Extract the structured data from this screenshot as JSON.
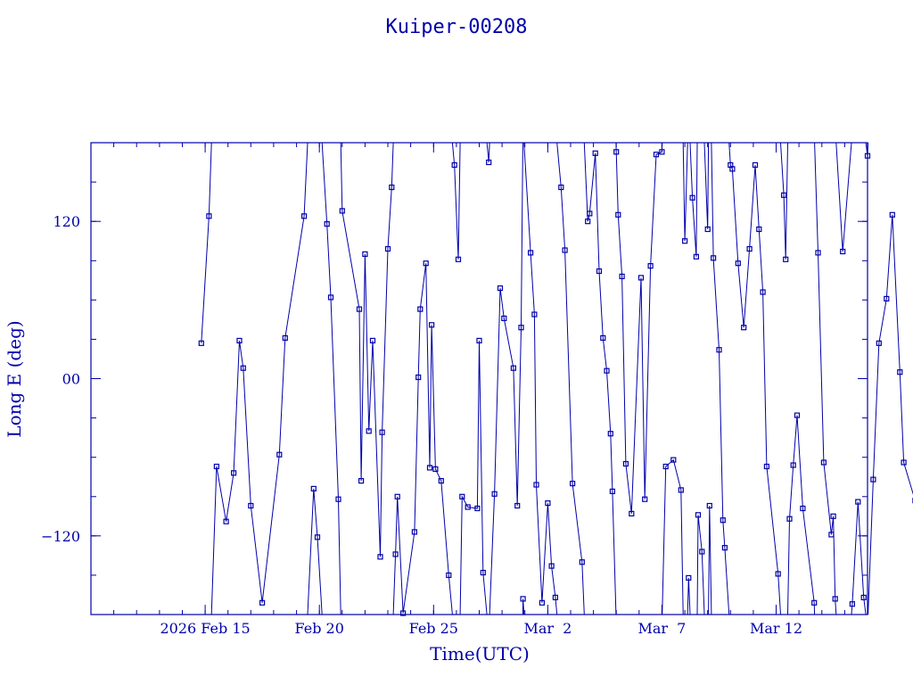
{
  "chart_data": {
    "type": "line",
    "title": "Kuiper-00208",
    "xlabel": "Time(UTC)",
    "ylabel": "Long E (deg)",
    "x_ticks": [
      {
        "day": 0,
        "label": "2026 Feb 15"
      },
      {
        "day": 5,
        "label": "Feb 20"
      },
      {
        "day": 10,
        "label": "Feb 25"
      },
      {
        "day": 15,
        "label": "Mar  2"
      },
      {
        "day": 20,
        "label": "Mar  7"
      },
      {
        "day": 25,
        "label": "Mar 12"
      }
    ],
    "y_ticks": [
      {
        "value": 120,
        "label": "120"
      },
      {
        "value": 0,
        "label": "00"
      },
      {
        "value": -120,
        "label": "−120"
      }
    ],
    "xlim": [
      "2026-02-10",
      "2026-03-16"
    ],
    "ylim": [
      -180,
      180
    ],
    "grid": false,
    "points": [
      {
        "t": "2026-02-14 20:00",
        "lon": 27
      },
      {
        "t": "2026-02-15 04:00",
        "lon": 124
      },
      {
        "t": "2026-02-15 12:00",
        "lon": -67
      },
      {
        "t": "2026-02-15 22:00",
        "lon": -109
      },
      {
        "t": "2026-02-16 06:00",
        "lon": -72
      },
      {
        "t": "2026-02-16 12:00",
        "lon": 29
      },
      {
        "t": "2026-02-16 16:00",
        "lon": 8
      },
      {
        "t": "2026-02-17 00:00",
        "lon": -97
      },
      {
        "t": "2026-02-17 12:00",
        "lon": -171
      },
      {
        "t": "2026-02-18 06:00",
        "lon": -58
      },
      {
        "t": "2026-02-18 12:00",
        "lon": 31
      },
      {
        "t": "2026-02-19 08:00",
        "lon": 124
      },
      {
        "t": "2026-02-19 18:00",
        "lon": -84
      },
      {
        "t": "2026-02-19 22:00",
        "lon": -121
      },
      {
        "t": "2026-02-20 08:00",
        "lon": 118
      },
      {
        "t": "2026-02-20 12:00",
        "lon": 62
      },
      {
        "t": "2026-02-20 20:00",
        "lon": -92
      },
      {
        "t": "2026-02-21 00:00",
        "lon": 128
      },
      {
        "t": "2026-02-21 18:00",
        "lon": 53
      },
      {
        "t": "2026-02-21 20:00",
        "lon": -78
      },
      {
        "t": "2026-02-22 00:00",
        "lon": 95
      },
      {
        "t": "2026-02-22 04:00",
        "lon": -40
      },
      {
        "t": "2026-02-22 08:00",
        "lon": 29
      },
      {
        "t": "2026-02-22 16:00",
        "lon": -136
      },
      {
        "t": "2026-02-22 18:00",
        "lon": -41
      },
      {
        "t": "2026-02-23 00:00",
        "lon": 99
      },
      {
        "t": "2026-02-23 04:00",
        "lon": 146
      },
      {
        "t": "2026-02-23 08:00",
        "lon": -134
      },
      {
        "t": "2026-02-23 10:00",
        "lon": -90
      },
      {
        "t": "2026-02-23 16:00",
        "lon": -179
      },
      {
        "t": "2026-02-24 04:00",
        "lon": -117
      },
      {
        "t": "2026-02-24 08:00",
        "lon": 1
      },
      {
        "t": "2026-02-24 10:00",
        "lon": 53
      },
      {
        "t": "2026-02-24 16:00",
        "lon": 88
      },
      {
        "t": "2026-02-24 20:00",
        "lon": -68
      },
      {
        "t": "2026-02-24 22:00",
        "lon": 41
      },
      {
        "t": "2026-02-25 02:00",
        "lon": -69
      },
      {
        "t": "2026-02-25 08:00",
        "lon": -78
      },
      {
        "t": "2026-02-25 16:00",
        "lon": -150
      },
      {
        "t": "2026-02-25 22:00",
        "lon": 163
      },
      {
        "t": "2026-02-26 02:00",
        "lon": 91
      },
      {
        "t": "2026-02-26 06:00",
        "lon": -90
      },
      {
        "t": "2026-02-26 12:00",
        "lon": -98
      },
      {
        "t": "2026-02-26 22:00",
        "lon": -99
      },
      {
        "t": "2026-02-27 00:00",
        "lon": 29
      },
      {
        "t": "2026-02-27 04:00",
        "lon": -148
      },
      {
        "t": "2026-02-27 10:00",
        "lon": 165
      },
      {
        "t": "2026-02-27 16:00",
        "lon": -88
      },
      {
        "t": "2026-02-27 22:00",
        "lon": 69
      },
      {
        "t": "2026-02-28 02:00",
        "lon": 46
      },
      {
        "t": "2026-02-28 12:00",
        "lon": 8
      },
      {
        "t": "2026-02-28 16:00",
        "lon": -97
      },
      {
        "t": "2026-02-28 20:00",
        "lon": 39
      },
      {
        "t": "2026-02-28 22:00",
        "lon": -168
      },
      {
        "t": "2026-03-01 06:00",
        "lon": 96
      },
      {
        "t": "2026-03-01 10:00",
        "lon": 49
      },
      {
        "t": "2026-03-01 12:00",
        "lon": -81
      },
      {
        "t": "2026-03-01 18:00",
        "lon": -171
      },
      {
        "t": "2026-03-02 00:00",
        "lon": -95
      },
      {
        "t": "2026-03-02 04:00",
        "lon": -143
      },
      {
        "t": "2026-03-02 08:00",
        "lon": -167
      },
      {
        "t": "2026-03-02 14:00",
        "lon": 146
      },
      {
        "t": "2026-03-02 18:00",
        "lon": 98
      },
      {
        "t": "2026-03-03 02:00",
        "lon": -80
      },
      {
        "t": "2026-03-03 12:00",
        "lon": -140
      },
      {
        "t": "2026-03-03 18:00",
        "lon": 120
      },
      {
        "t": "2026-03-03 20:00",
        "lon": 126
      },
      {
        "t": "2026-03-04 02:00",
        "lon": 172
      },
      {
        "t": "2026-03-04 06:00",
        "lon": 82
      },
      {
        "t": "2026-03-04 10:00",
        "lon": 31
      },
      {
        "t": "2026-03-04 14:00",
        "lon": 6
      },
      {
        "t": "2026-03-04 18:00",
        "lon": -42
      },
      {
        "t": "2026-03-04 20:00",
        "lon": -86
      },
      {
        "t": "2026-03-05 00:00",
        "lon": 173
      },
      {
        "t": "2026-03-05 02:00",
        "lon": 125
      },
      {
        "t": "2026-03-05 06:00",
        "lon": 78
      },
      {
        "t": "2026-03-05 10:00",
        "lon": -65
      },
      {
        "t": "2026-03-05 16:00",
        "lon": -103
      },
      {
        "t": "2026-03-06 02:00",
        "lon": 77
      },
      {
        "t": "2026-03-06 06:00",
        "lon": -92
      },
      {
        "t": "2026-03-06 12:00",
        "lon": 86
      },
      {
        "t": "2026-03-06 18:00",
        "lon": 171
      },
      {
        "t": "2026-03-07 00:00",
        "lon": 173
      },
      {
        "t": "2026-03-07 04:00",
        "lon": -67
      },
      {
        "t": "2026-03-07 12:00",
        "lon": -62
      },
      {
        "t": "2026-03-07 20:00",
        "lon": -85
      },
      {
        "t": "2026-03-08 00:00",
        "lon": 105
      },
      {
        "t": "2026-03-08 04:00",
        "lon": -152
      },
      {
        "t": "2026-03-08 08:00",
        "lon": 138
      },
      {
        "t": "2026-03-08 12:00",
        "lon": 93
      },
      {
        "t": "2026-03-08 14:00",
        "lon": -104
      },
      {
        "t": "2026-03-08 18:00",
        "lon": -132
      },
      {
        "t": "2026-03-09 00:00",
        "lon": 114
      },
      {
        "t": "2026-03-09 02:00",
        "lon": -97
      },
      {
        "t": "2026-03-09 06:00",
        "lon": 92
      },
      {
        "t": "2026-03-09 12:00",
        "lon": 22
      },
      {
        "t": "2026-03-09 16:00",
        "lon": -108
      },
      {
        "t": "2026-03-09 18:00",
        "lon": -129
      },
      {
        "t": "2026-03-10 00:00",
        "lon": 163
      },
      {
        "t": "2026-03-10 02:00",
        "lon": 160
      },
      {
        "t": "2026-03-10 08:00",
        "lon": 88
      },
      {
        "t": "2026-03-10 14:00",
        "lon": 39
      },
      {
        "t": "2026-03-10 20:00",
        "lon": 99
      },
      {
        "t": "2026-03-11 02:00",
        "lon": 163
      },
      {
        "t": "2026-03-11 06:00",
        "lon": 114
      },
      {
        "t": "2026-03-11 10:00",
        "lon": 66
      },
      {
        "t": "2026-03-11 14:00",
        "lon": -67
      },
      {
        "t": "2026-03-12 02:00",
        "lon": -149
      },
      {
        "t": "2026-03-12 08:00",
        "lon": 140
      },
      {
        "t": "2026-03-12 10:00",
        "lon": 91
      },
      {
        "t": "2026-03-12 14:00",
        "lon": -107
      },
      {
        "t": "2026-03-12 18:00",
        "lon": -66
      },
      {
        "t": "2026-03-12 22:00",
        "lon": -28
      },
      {
        "t": "2026-03-13 04:00",
        "lon": -99
      },
      {
        "t": "2026-03-13 16:00",
        "lon": -171
      },
      {
        "t": "2026-03-13 20:00",
        "lon": 96
      },
      {
        "t": "2026-03-14 02:00",
        "lon": -64
      },
      {
        "t": "2026-03-14 10:00",
        "lon": -119
      },
      {
        "t": "2026-03-14 12:00",
        "lon": -105
      },
      {
        "t": "2026-03-14 14:00",
        "lon": -168
      },
      {
        "t": "2026-03-14 22:00",
        "lon": 97
      },
      {
        "t": "2026-03-15 08:00",
        "lon": -172
      },
      {
        "t": "2026-03-15 14:00",
        "lon": -94
      },
      {
        "t": "2026-03-15 20:00",
        "lon": -167
      },
      {
        "t": "2026-03-16 00:00",
        "lon": 170
      },
      {
        "t": "2026-03-16 06:00",
        "lon": -77
      },
      {
        "t": "2026-03-16 12:00",
        "lon": 27
      },
      {
        "t": "2026-03-16 20:00",
        "lon": 61
      },
      {
        "t": "2026-03-17 02:00",
        "lon": 125
      },
      {
        "t": "2026-03-17 10:00",
        "lon": 5
      },
      {
        "t": "2026-03-17 14:00",
        "lon": -64
      },
      {
        "t": "2026-03-18 02:00",
        "lon": -93
      }
    ]
  }
}
